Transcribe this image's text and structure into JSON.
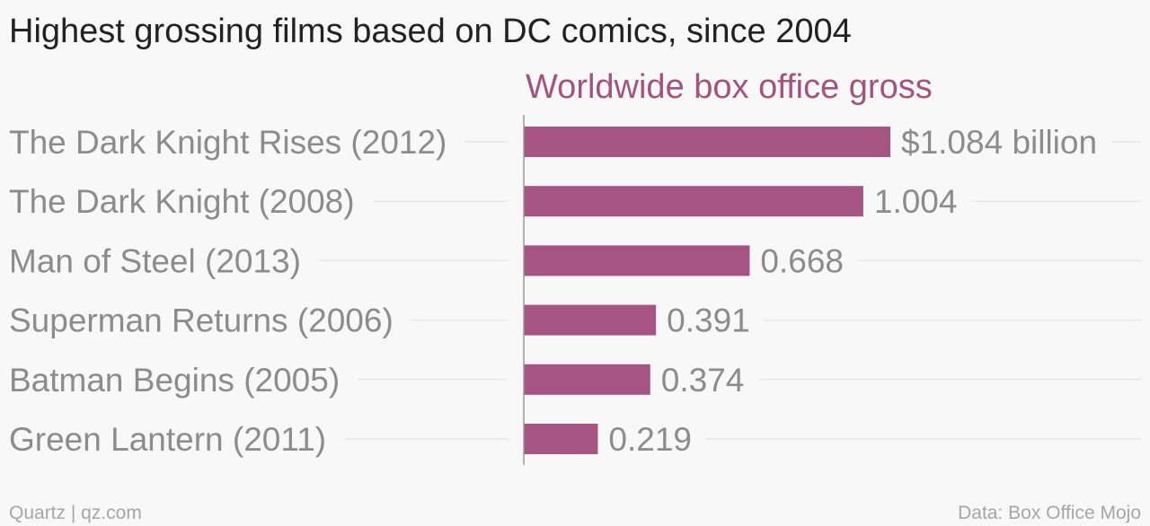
{
  "header": {
    "title": "Highest grossing films based on DC comics, since 2004",
    "series_label": "Worldwide box office gross"
  },
  "footer": {
    "left": "Quartz | qz.com",
    "right": "Data: Box Office Mojo"
  },
  "colors": {
    "bar": "#a65583",
    "label": "#8c8c8c",
    "gridline": "#e6e6e6",
    "axis": "#999999"
  },
  "chart_data": {
    "type": "bar",
    "orientation": "horizontal",
    "categories": [
      "The Dark Knight Rises (2012)",
      "The Dark Knight (2008)",
      "Man of Steel (2013)",
      "Superman Returns (2006)",
      "Batman Begins (2005)",
      "Green Lantern (2011)"
    ],
    "values": [
      1.084,
      1.004,
      0.668,
      0.391,
      0.374,
      0.219
    ],
    "value_labels": [
      "$1.084 billion",
      "1.004",
      "0.668",
      "0.391",
      "0.374",
      "0.219"
    ],
    "title": "Highest grossing films based on DC comics, since 2004",
    "ylabel": "Worldwide box office gross",
    "grid": true
  }
}
